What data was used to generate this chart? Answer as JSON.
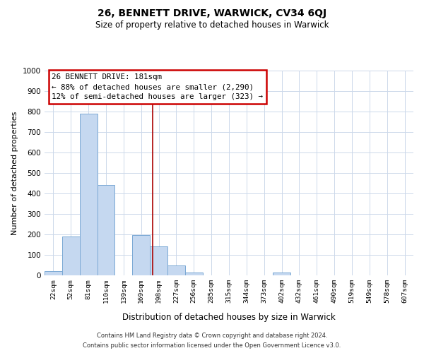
{
  "title": "26, BENNETT DRIVE, WARWICK, CV34 6QJ",
  "subtitle": "Size of property relative to detached houses in Warwick",
  "xlabel": "Distribution of detached houses by size in Warwick",
  "ylabel": "Number of detached properties",
  "bar_labels": [
    "22sqm",
    "52sqm",
    "81sqm",
    "110sqm",
    "139sqm",
    "169sqm",
    "198sqm",
    "227sqm",
    "256sqm",
    "285sqm",
    "315sqm",
    "344sqm",
    "373sqm",
    "402sqm",
    "432sqm",
    "461sqm",
    "490sqm",
    "519sqm",
    "549sqm",
    "578sqm",
    "607sqm"
  ],
  "bar_heights": [
    20,
    190,
    790,
    440,
    0,
    197,
    140,
    50,
    13,
    0,
    0,
    0,
    0,
    13,
    0,
    0,
    0,
    0,
    0,
    0,
    0
  ],
  "bar_color": "#c5d8f0",
  "bar_edge_color": "#7aa8d4",
  "vline_x_index": 5.67,
  "vline_color": "#aa0000",
  "ylim": [
    0,
    1000
  ],
  "yticks": [
    0,
    100,
    200,
    300,
    400,
    500,
    600,
    700,
    800,
    900,
    1000
  ],
  "annotation_title": "26 BENNETT DRIVE: 181sqm",
  "annotation_line1": "← 88% of detached houses are smaller (2,290)",
  "annotation_line2": "12% of semi-detached houses are larger (323) →",
  "annotation_box_color": "#ffffff",
  "annotation_box_edge": "#cc0000",
  "footer_line1": "Contains HM Land Registry data © Crown copyright and database right 2024.",
  "footer_line2": "Contains public sector information licensed under the Open Government Licence v3.0.",
  "background_color": "#ffffff",
  "grid_color": "#ccd8ea"
}
